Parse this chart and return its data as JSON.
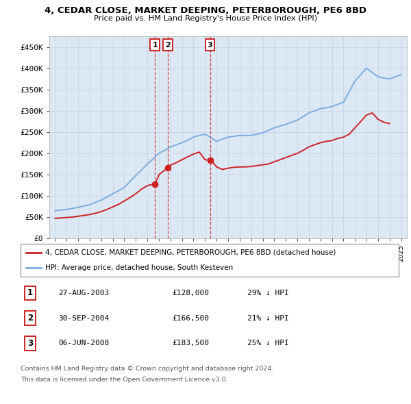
{
  "title": "4, CEDAR CLOSE, MARKET DEEPING, PETERBOROUGH, PE6 8BD",
  "subtitle": "Price paid vs. HM Land Registry's House Price Index (HPI)",
  "ylabel_ticks": [
    "£0",
    "£50K",
    "£100K",
    "£150K",
    "£200K",
    "£250K",
    "£300K",
    "£350K",
    "£400K",
    "£450K"
  ],
  "ylabel_values": [
    0,
    50000,
    100000,
    150000,
    200000,
    250000,
    300000,
    350000,
    400000,
    450000
  ],
  "ylim": [
    0,
    475000
  ],
  "xlim_start": 1994.5,
  "xlim_end": 2025.5,
  "hpi_color": "#7aade0",
  "sale_color": "#cc2222",
  "bg_color": "#dde8f5",
  "plot_bg": "#ffffff",
  "grid_color": "#c8d4e4",
  "transactions": [
    {
      "num": 1,
      "date": "27-AUG-2003",
      "year": 2003.65,
      "price": 128000,
      "label": "29% ↓ HPI"
    },
    {
      "num": 2,
      "date": "30-SEP-2004",
      "year": 2004.75,
      "price": 166500,
      "label": "21% ↓ HPI"
    },
    {
      "num": 3,
      "date": "06-JUN-2008",
      "year": 2008.43,
      "price": 183500,
      "label": "25% ↓ HPI"
    }
  ],
  "legend_entries": [
    "4, CEDAR CLOSE, MARKET DEEPING, PETERBOROUGH, PE6 8BD (detached house)",
    "HPI: Average price, detached house, South Kesteven"
  ],
  "footer_lines": [
    "Contains HM Land Registry data © Crown copyright and database right 2024.",
    "This data is licensed under the Open Government Licence v3.0."
  ]
}
